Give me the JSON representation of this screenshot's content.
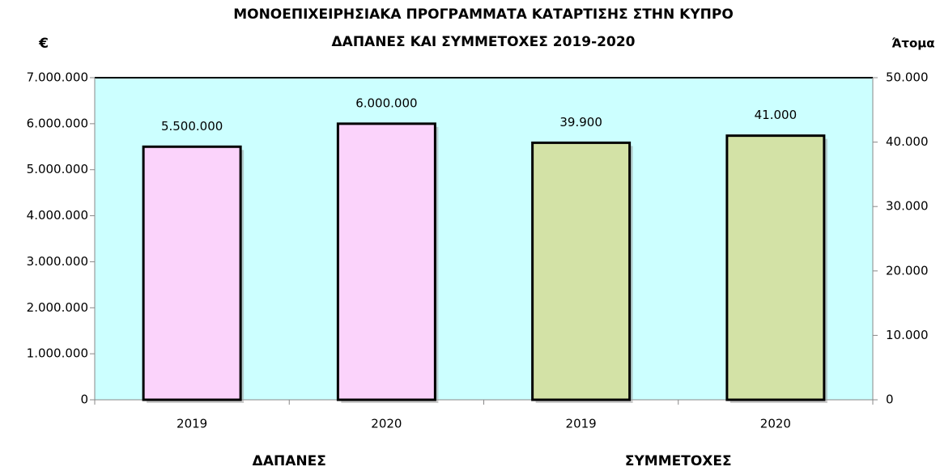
{
  "chart_data": {
    "type": "bar",
    "title": "ΜΟΝΟΕΠΙΧΕΙΡΗΣΙΑΚΑ ΠΡΟΓΡΑΜΜΑΤΑ ΚΑΤΑΡΤΙΣΗΣ ΣΤΗΝ ΚΥΠΡΟ",
    "subtitle": "ΔΑΠΑΝΕΣ ΚΑΙ ΣΥΜΜΕΤΟΧΕΣ 2019-2020",
    "ylabel": "€",
    "y2label": "Άτομα",
    "categories": [
      "2019",
      "2020",
      "2019",
      "2020"
    ],
    "series": [
      {
        "name": "ΔΑΠΑΝΕΣ",
        "color": "#fbd3fb",
        "values": [
          5500000,
          6000000,
          null,
          null
        ],
        "value_labels": [
          "5.500.000",
          "6.000.000",
          null,
          null
        ]
      },
      {
        "name": "ΣΥΜΜΕΤΟΧΕΣ",
        "color": "#d3e2a6",
        "axis": "y2",
        "values": [
          null,
          null,
          39900,
          41000
        ],
        "value_labels": [
          null,
          null,
          "39.900",
          "41.000"
        ]
      }
    ],
    "ylim": [
      0,
      7000000
    ],
    "yticks": [
      0,
      {
        "value": 1000000,
        "label": "1.000.000"
      },
      {
        "value": 2000000,
        "label": "2.000.000"
      },
      {
        "value": 3000000,
        "label": "3.000.000"
      },
      {
        "value": 4000000,
        "label": "4.000.000"
      },
      {
        "value": 5000000,
        "label": "5.000.000"
      },
      {
        "value": 6000000,
        "label": "6.000.000"
      },
      {
        "value": 7000000,
        "label": "7.000.000"
      }
    ],
    "y2lim": [
      0,
      50000
    ],
    "y2ticks": [
      0,
      {
        "value": 10000,
        "label": "10.000"
      },
      {
        "value": 20000,
        "label": "20.000"
      },
      {
        "value": 30000,
        "label": "30.000"
      },
      {
        "value": 40000,
        "label": "40.000"
      },
      {
        "value": 50000,
        "label": "50.000"
      }
    ],
    "plot_background": "#ccffff",
    "grid": false
  }
}
